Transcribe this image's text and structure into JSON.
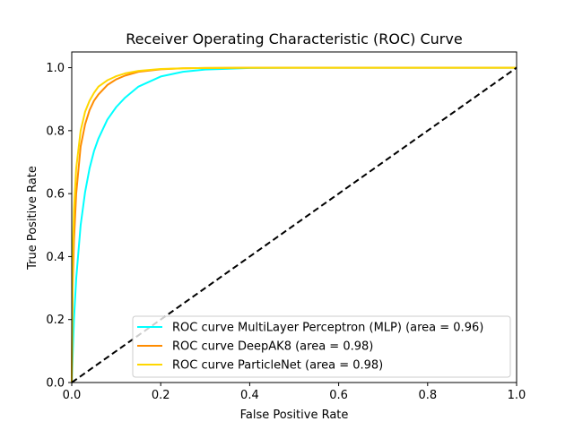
{
  "chart_data": {
    "type": "line",
    "title": "Receiver Operating Characteristic (ROC) Curve",
    "xlabel": "False Positive Rate",
    "ylabel": "True Positive Rate",
    "xlim": [
      0,
      1.0
    ],
    "ylim": [
      0,
      1.05
    ],
    "xticks": [
      "0.0",
      "0.2",
      "0.4",
      "0.6",
      "0.8",
      "1.0"
    ],
    "yticks": [
      "0.0",
      "0.2",
      "0.4",
      "0.6",
      "0.8",
      "1.0"
    ],
    "grid": false,
    "legend_position": "lower-right",
    "series": [
      {
        "name": "ROC curve MultiLayer Perceptron (MLP) (area = 0.96)",
        "color": "#00ffff",
        "x": [
          0,
          0.005,
          0.01,
          0.02,
          0.03,
          0.04,
          0.05,
          0.06,
          0.08,
          0.1,
          0.12,
          0.15,
          0.2,
          0.25,
          0.3,
          0.4,
          0.5,
          0.7,
          1.0
        ],
        "y": [
          0,
          0.2,
          0.33,
          0.5,
          0.605,
          0.68,
          0.735,
          0.775,
          0.835,
          0.875,
          0.905,
          0.94,
          0.972,
          0.987,
          0.994,
          0.999,
          1.0,
          1.0,
          1.0
        ]
      },
      {
        "name": "ROC curve DeepAK8 (area = 0.98)",
        "color": "#ff8c00",
        "x": [
          0,
          0.002,
          0.005,
          0.01,
          0.02,
          0.03,
          0.04,
          0.05,
          0.06,
          0.08,
          0.1,
          0.12,
          0.15,
          0.2,
          0.25,
          0.3,
          0.4,
          0.6,
          1.0
        ],
        "y": [
          0,
          0.3,
          0.45,
          0.6,
          0.75,
          0.82,
          0.865,
          0.895,
          0.915,
          0.945,
          0.963,
          0.975,
          0.987,
          0.995,
          0.998,
          0.999,
          1.0,
          1.0,
          1.0
        ]
      },
      {
        "name": "ROC curve ParticleNet (area = 0.98)",
        "color": "#ffd700",
        "x": [
          0,
          0.002,
          0.005,
          0.01,
          0.02,
          0.03,
          0.04,
          0.05,
          0.06,
          0.08,
          0.1,
          0.12,
          0.15,
          0.2,
          0.25,
          0.3,
          0.4,
          0.6,
          1.0
        ],
        "y": [
          0,
          0.4,
          0.55,
          0.68,
          0.8,
          0.86,
          0.895,
          0.92,
          0.94,
          0.96,
          0.973,
          0.982,
          0.99,
          0.996,
          0.998,
          0.999,
          1.0,
          1.0,
          1.0
        ]
      },
      {
        "name": "",
        "color": "#000000",
        "dashed": true,
        "x": [
          0,
          1
        ],
        "y": [
          0,
          1
        ]
      }
    ]
  }
}
